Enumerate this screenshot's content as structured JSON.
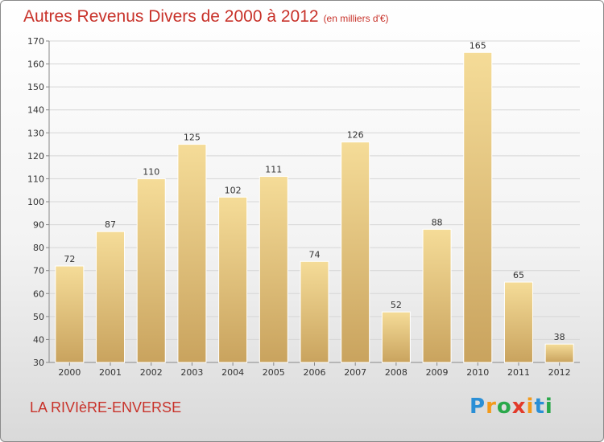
{
  "chart_data": {
    "type": "bar",
    "title": "Autres Revenus Divers de 2000 à 2012",
    "subtitle": "(en milliers d'€)",
    "categories": [
      "2000",
      "2001",
      "2002",
      "2003",
      "2004",
      "2005",
      "2006",
      "2007",
      "2008",
      "2009",
      "2010",
      "2011",
      "2012"
    ],
    "values": [
      72,
      87,
      110,
      125,
      102,
      111,
      74,
      126,
      52,
      88,
      165,
      65,
      38
    ],
    "ylim": [
      30,
      170
    ],
    "yticks": [
      30,
      40,
      50,
      60,
      70,
      80,
      90,
      100,
      110,
      120,
      130,
      140,
      150,
      160,
      170
    ],
    "grid": true,
    "bar_color": "#e6c27a",
    "title_color": "#c8322a"
  },
  "footer": {
    "place": "LA RIVIèRE-ENVERSE",
    "logo": {
      "letters": [
        "P",
        "r",
        "o",
        "x",
        "i",
        "t",
        "i"
      ],
      "colors": [
        "#2a8fd6",
        "#f39a1b",
        "#2aa84a",
        "#e23a2a",
        "#f39a1b",
        "#2a8fd6",
        "#2aa84a"
      ]
    }
  }
}
